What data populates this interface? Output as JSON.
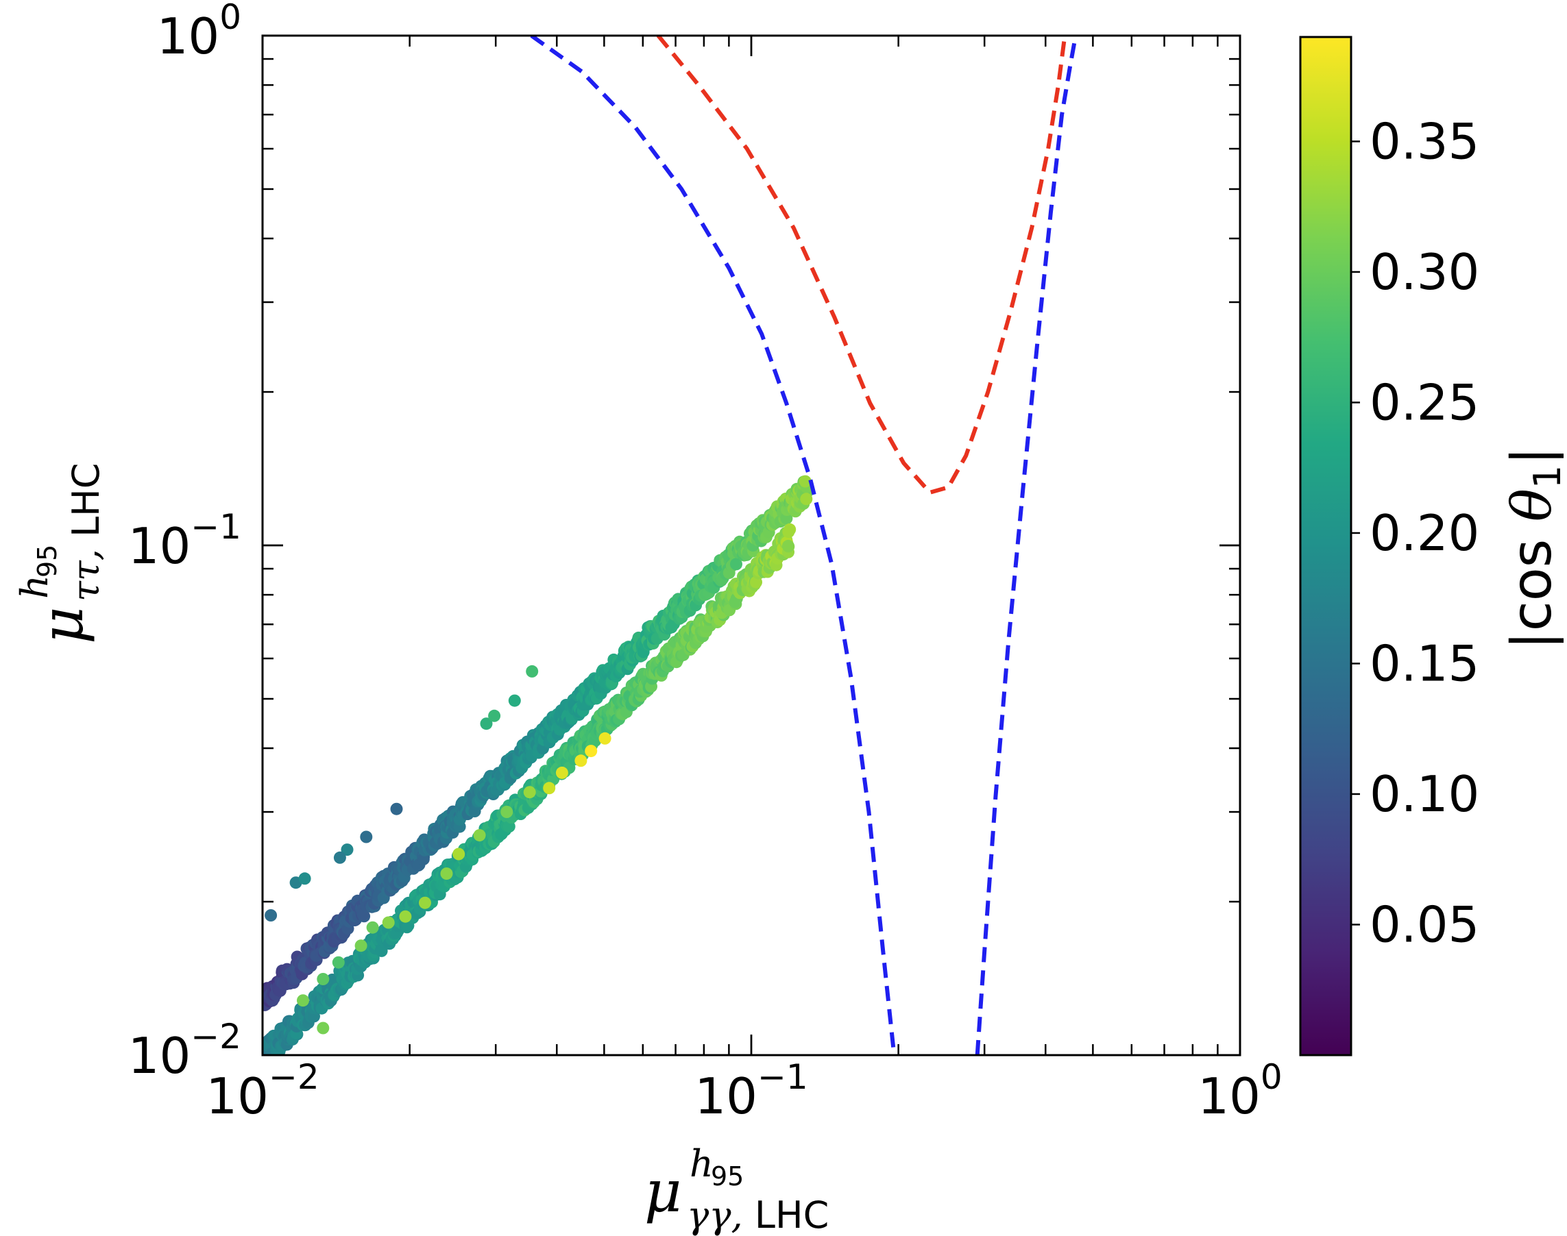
{
  "chart_data": {
    "type": "scatter",
    "xscale": "log",
    "yscale": "log",
    "xlim": [
      0.01,
      1
    ],
    "ylim": [
      0.01,
      1
    ],
    "x_ticks": [
      {
        "base": "10",
        "exp": "−2"
      },
      {
        "base": "10",
        "exp": "−1"
      },
      {
        "base": "10",
        "exp": "0"
      }
    ],
    "y_ticks": [
      {
        "base": "10",
        "exp": "−2"
      },
      {
        "base": "10",
        "exp": "−1"
      },
      {
        "base": "10",
        "exp": "0"
      }
    ],
    "xlabel": {
      "mu": "μ",
      "sup_h": "h",
      "sup_sub": "95",
      "sub_math": "γγ,",
      "sub_text": " LHC"
    },
    "ylabel": {
      "mu": "μ",
      "sup_h": "h",
      "sup_sub": "95",
      "sub_math": "ττ,",
      "sub_text": " LHC"
    },
    "colorbar": {
      "label": "|cos θ1|",
      "label_parts": {
        "left": "|cos ",
        "theta": "θ",
        "sub": "1",
        "right": "|"
      },
      "min": 0.0,
      "max": 0.39,
      "ticks": [
        "0.05",
        "0.10",
        "0.15",
        "0.20",
        "0.25",
        "0.30",
        "0.35"
      ],
      "tick_values": [
        0.05,
        0.1,
        0.15,
        0.2,
        0.25,
        0.3,
        0.35
      ],
      "colormap": "viridis"
    },
    "series": [
      {
        "name": "upper band (scan points)",
        "kind": "band",
        "x_range": [
          0.01,
          0.13
        ],
        "slope": 0.9,
        "y_at_xmin": 0.0128,
        "c_start": 0.07,
        "c_end": 0.32
      },
      {
        "name": "lower band (scan points)",
        "kind": "band",
        "x_range": [
          0.01,
          0.12
        ],
        "slope": 0.94,
        "y_at_xmin": 0.0099,
        "c_start": 0.17,
        "c_end": 0.33
      },
      {
        "name": "outliers",
        "kind": "points",
        "points": [
          [
            0.0104,
            0.0188,
            0.14
          ],
          [
            0.0117,
            0.0218,
            0.17
          ],
          [
            0.0122,
            0.0222,
            0.19
          ],
          [
            0.0149,
            0.0253,
            0.18
          ],
          [
            0.0144,
            0.0244,
            0.16
          ],
          [
            0.0163,
            0.0268,
            0.14
          ],
          [
            0.0188,
            0.0304,
            0.13
          ],
          [
            0.0287,
            0.0447,
            0.25
          ],
          [
            0.0298,
            0.0463,
            0.26
          ],
          [
            0.0328,
            0.0496,
            0.24
          ],
          [
            0.0356,
            0.0566,
            0.27
          ],
          [
            0.0121,
            0.0128,
            0.31
          ],
          [
            0.0133,
            0.0141,
            0.29
          ],
          [
            0.0143,
            0.0152,
            0.28
          ],
          [
            0.0159,
            0.0164,
            0.31
          ],
          [
            0.0168,
            0.0178,
            0.3
          ],
          [
            0.0181,
            0.0182,
            0.32
          ],
          [
            0.0196,
            0.0187,
            0.33
          ],
          [
            0.0215,
            0.0199,
            0.33
          ],
          [
            0.0238,
            0.0227,
            0.32
          ],
          [
            0.0252,
            0.0248,
            0.34
          ],
          [
            0.0278,
            0.027,
            0.32
          ],
          [
            0.0316,
            0.03,
            0.31
          ],
          [
            0.0352,
            0.0328,
            0.33
          ],
          [
            0.0386,
            0.0334,
            0.36
          ],
          [
            0.041,
            0.0358,
            0.37
          ],
          [
            0.0448,
            0.0378,
            0.38
          ],
          [
            0.047,
            0.0395,
            0.39
          ],
          [
            0.0502,
            0.0418,
            0.38
          ],
          [
            0.0133,
            0.0113,
            0.31
          ]
        ]
      },
      {
        "name": "blue dashed contour",
        "kind": "line",
        "color": "#1f1ff0",
        "style": "dashed",
        "segments": [
          [
            [
              0.0355,
              1.0
            ],
            [
              0.045,
              0.85
            ],
            [
              0.058,
              0.66
            ],
            [
              0.072,
              0.5
            ],
            [
              0.09,
              0.35
            ],
            [
              0.105,
              0.26
            ],
            [
              0.118,
              0.19
            ],
            [
              0.132,
              0.135
            ],
            [
              0.146,
              0.092
            ],
            [
              0.16,
              0.055
            ],
            [
              0.174,
              0.03
            ],
            [
              0.186,
              0.016
            ],
            [
              0.196,
              0.01
            ]
          ],
          [
            [
              0.29,
              0.01
            ],
            [
              0.3,
              0.016
            ],
            [
              0.316,
              0.032
            ],
            [
              0.336,
              0.065
            ],
            [
              0.36,
              0.13
            ],
            [
              0.385,
              0.25
            ],
            [
              0.41,
              0.45
            ],
            [
              0.432,
              0.7
            ],
            [
              0.45,
              0.88
            ],
            [
              0.461,
              1.0
            ]
          ]
        ]
      },
      {
        "name": "red dashed contour",
        "kind": "line",
        "color": "#e8321e",
        "style": "dashed",
        "segments": [
          [
            [
              0.0645,
              1.0
            ],
            [
              0.078,
              0.8
            ],
            [
              0.098,
              0.6
            ],
            [
              0.122,
              0.42
            ],
            [
              0.148,
              0.28
            ],
            [
              0.175,
              0.19
            ],
            [
              0.205,
              0.145
            ],
            [
              0.232,
              0.127
            ],
            [
              0.253,
              0.13
            ],
            [
              0.275,
              0.15
            ],
            [
              0.305,
              0.2
            ],
            [
              0.34,
              0.29
            ],
            [
              0.375,
              0.42
            ],
            [
              0.405,
              0.6
            ],
            [
              0.425,
              0.8
            ],
            [
              0.438,
              1.0
            ]
          ]
        ]
      }
    ]
  }
}
